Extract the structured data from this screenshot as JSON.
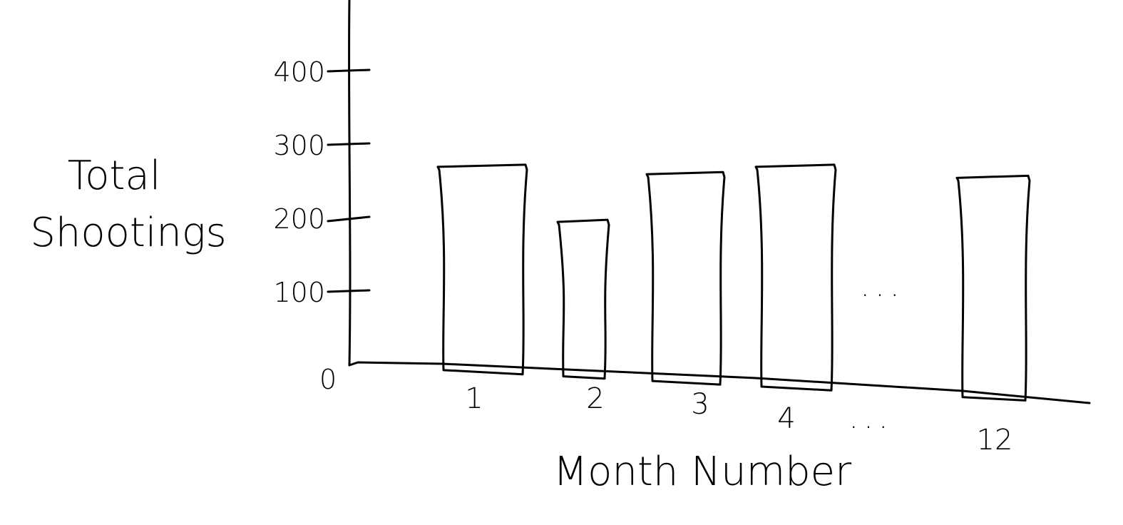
{
  "chart_data": {
    "type": "bar",
    "xlabel": "Month Number",
    "ylabel": [
      "Total",
      "Shootings"
    ],
    "yticks": [
      "0",
      "100",
      "200",
      "300",
      "400"
    ],
    "ylim": [
      0,
      400
    ],
    "categories": [
      "1",
      "2",
      "3",
      "4",
      "12"
    ],
    "values": [
      270,
      195,
      260,
      270,
      255
    ],
    "ellipsis": "...",
    "grid": false,
    "ink_color": "#000000",
    "background": "#ffffff"
  }
}
